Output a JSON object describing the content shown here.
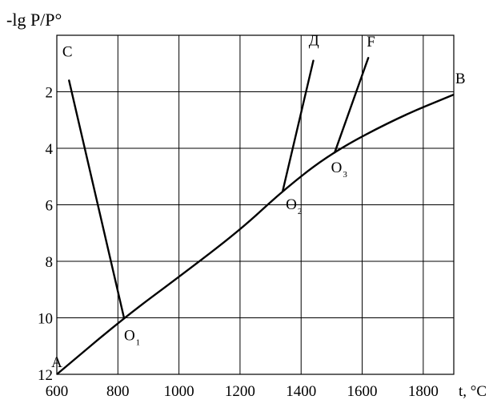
{
  "chart_data": {
    "type": "line",
    "y_axis_label": "-lg P/P°",
    "x_axis_label": "t, °C",
    "x_ticks": [
      "600",
      "800",
      "1000",
      "1200",
      "1400",
      "1600",
      "1800"
    ],
    "y_ticks": [
      "2",
      "4",
      "6",
      "8",
      "10",
      "12"
    ],
    "xlim": [
      600,
      1900
    ],
    "ylim": [
      0,
      12
    ],
    "y_inverted": true,
    "grid": true,
    "curve_AB": {
      "points": [
        {
          "x": 600,
          "y": 12.0
        },
        {
          "x": 820,
          "y": 10.0
        },
        {
          "x": 1000,
          "y": 8.55
        },
        {
          "x": 1200,
          "y": 6.9
        },
        {
          "x": 1340,
          "y": 5.5
        },
        {
          "x": 1500,
          "y": 4.15
        },
        {
          "x": 1720,
          "y": 2.9
        },
        {
          "x": 1900,
          "y": 2.1
        }
      ]
    },
    "segments": [
      {
        "from": "C",
        "to": "O1",
        "points": [
          {
            "x": 640,
            "y": 1.6
          },
          {
            "x": 820,
            "y": 10.0
          }
        ]
      },
      {
        "from": "Д",
        "to": "O2",
        "points": [
          {
            "x": 1440,
            "y": 0.9
          },
          {
            "x": 1340,
            "y": 5.5
          }
        ]
      },
      {
        "from": "F",
        "to": "O3",
        "points": [
          {
            "x": 1620,
            "y": 0.8
          },
          {
            "x": 1510,
            "y": 4.15
          }
        ]
      }
    ],
    "point_labels": [
      {
        "text": "A",
        "sub": "",
        "x": 582,
        "y": 11.75
      },
      {
        "text": "B",
        "sub": "",
        "x": 1905,
        "y": 1.7
      },
      {
        "text": "C",
        "sub": "",
        "x": 618,
        "y": 0.75
      },
      {
        "text": "Д",
        "sub": "",
        "x": 1425,
        "y": 0.35
      },
      {
        "text": "F",
        "sub": "",
        "x": 1615,
        "y": 0.4
      },
      {
        "text": "O",
        "sub": "1",
        "x": 820,
        "y": 10.8
      },
      {
        "text": "O",
        "sub": "2",
        "x": 1350,
        "y": 6.15
      },
      {
        "text": "O",
        "sub": "3",
        "x": 1498,
        "y": 4.85
      }
    ]
  }
}
